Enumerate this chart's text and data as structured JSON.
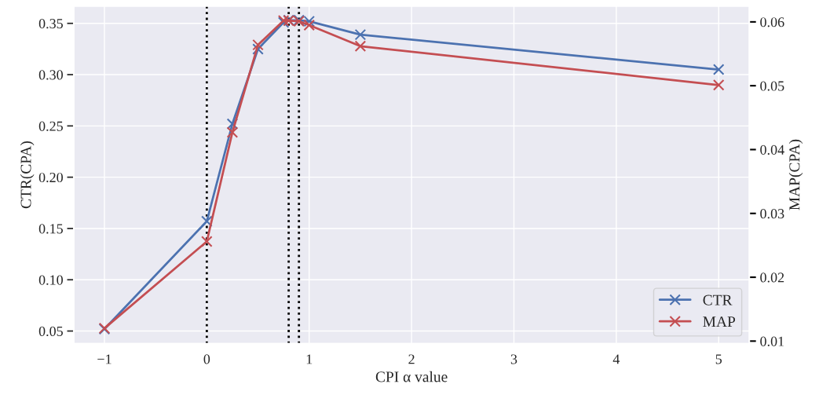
{
  "chart_data": {
    "type": "line",
    "xlabel": "CPI α value",
    "ylabel": "CTR(CPA)",
    "y2label": "MAP(CPA)",
    "x": [
      -1,
      0,
      0.25,
      0.5,
      0.75,
      0.8,
      0.9,
      1.0,
      1.5,
      5
    ],
    "series": [
      {
        "name": "CTR",
        "color": "#4c72b0",
        "values": [
          0.052,
          0.157,
          0.252,
          0.325,
          0.351,
          0.353,
          0.353,
          0.352,
          0.339,
          0.305
        ]
      },
      {
        "name": "MAP",
        "color": "#c44e52",
        "axis": "y2",
        "values": [
          0.012,
          0.0256,
          0.0427,
          0.0564,
          0.0602,
          0.0602,
          0.0601,
          0.0595,
          0.0562,
          0.0501
        ]
      }
    ],
    "xlim": [
      -1.3,
      5.3
    ],
    "xticks": [
      {
        "value": -1,
        "label": "−1"
      },
      0,
      1,
      2,
      3,
      4,
      5
    ],
    "ylim": [
      0.0377,
      0.367
    ],
    "yticks": [
      {
        "value": 0.05,
        "label": "0.05"
      },
      {
        "value": 0.1,
        "label": "0.10"
      },
      {
        "value": 0.15,
        "label": "0.15"
      },
      {
        "value": 0.2,
        "label": "0.20"
      },
      {
        "value": 0.25,
        "label": "0.25"
      },
      {
        "value": 0.3,
        "label": "0.30"
      },
      {
        "value": 0.35,
        "label": "0.35"
      }
    ],
    "y2lim": [
      0.0096,
      0.0625
    ],
    "y2ticks": [
      0.01,
      0.02,
      0.03,
      0.04,
      0.05,
      0.06
    ],
    "ref_lines": [
      {
        "axis": "x",
        "value": 0,
        "color": "#000000",
        "line_style": "dotted"
      },
      {
        "axis": "x",
        "value": 0.8,
        "color": "#000000",
        "line_style": "dotted"
      },
      {
        "axis": "x",
        "value": 0.9,
        "color": "#000000",
        "line_style": "dotted"
      }
    ],
    "marker": "cross",
    "line_style": "solid",
    "grid": true,
    "legend": "bottom right"
  }
}
